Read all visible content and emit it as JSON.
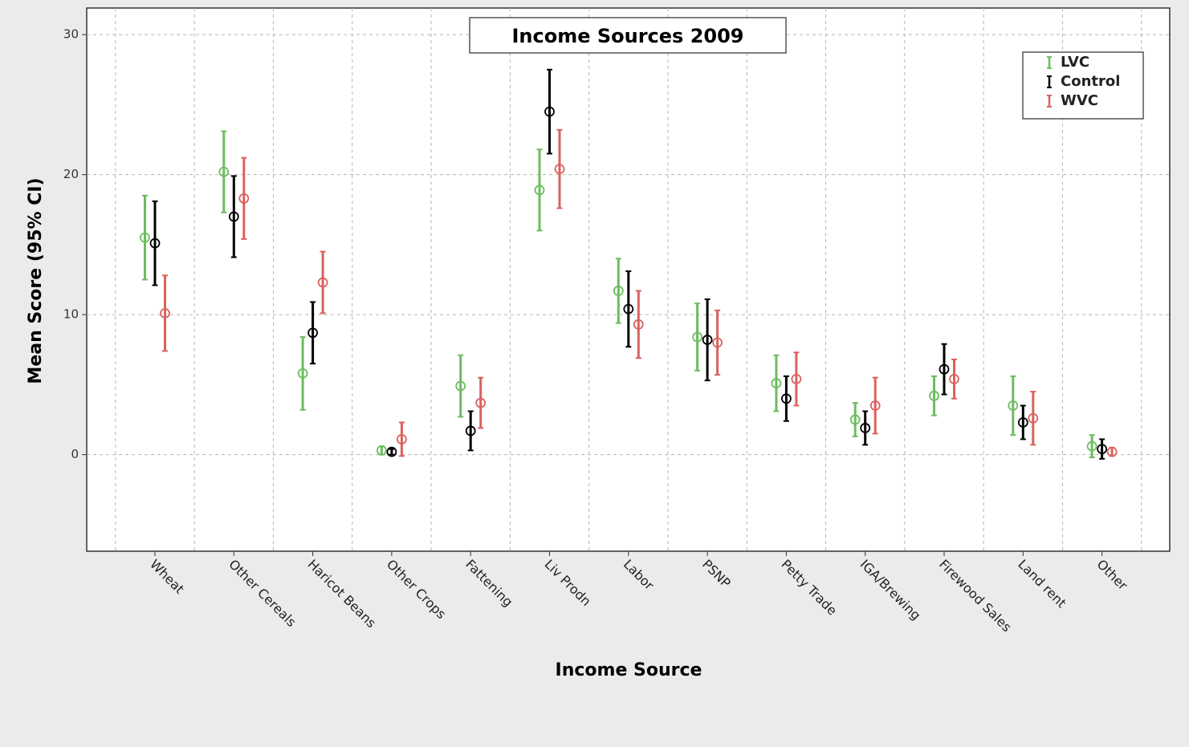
{
  "chart_data": {
    "type": "errorbar",
    "title": "Income Sources 2009",
    "x_label": "Income Source",
    "y_label": "Mean Score (95% CI)",
    "categories": [
      "Wheat",
      "Other Cereals",
      "Haricot Beans",
      "Other Crops",
      "Fattening",
      "Liv Prodn",
      "Labor",
      "PSNP",
      "Petty Trade",
      "IGA/Brewing",
      "Firewood Sales",
      "Land rent",
      "Other"
    ],
    "series": [
      {
        "name": "LVC",
        "color": "#6cbd5f",
        "values": [
          15.5,
          20.2,
          5.8,
          0.3,
          4.9,
          18.9,
          11.7,
          8.4,
          5.1,
          2.5,
          4.2,
          3.5,
          0.6
        ],
        "errors": [
          3.0,
          2.9,
          2.6,
          0.3,
          2.2,
          2.9,
          2.3,
          2.4,
          2.0,
          1.2,
          1.4,
          2.1,
          0.8
        ]
      },
      {
        "name": "Control",
        "color": "#000000",
        "values": [
          15.1,
          17.0,
          8.7,
          0.2,
          1.7,
          24.5,
          10.4,
          8.2,
          4.0,
          1.9,
          6.1,
          2.3,
          0.4
        ],
        "errors": [
          3.0,
          2.9,
          2.2,
          0.2,
          1.4,
          3.0,
          2.7,
          2.9,
          1.6,
          1.2,
          1.8,
          1.2,
          0.7
        ]
      },
      {
        "name": "WVC",
        "color": "#d9625e",
        "values": [
          10.1,
          18.3,
          12.3,
          1.1,
          3.7,
          20.4,
          9.3,
          8.0,
          5.4,
          3.5,
          5.4,
          2.6,
          0.2
        ],
        "errors": [
          2.7,
          2.9,
          2.2,
          1.2,
          1.8,
          2.8,
          2.4,
          2.3,
          1.9,
          2.0,
          1.4,
          1.9,
          0.3
        ]
      }
    ],
    "ylim": [
      -6.9,
      31.9
    ],
    "yticks": [
      0,
      10,
      20,
      30
    ],
    "grid": true,
    "legend": "upper right"
  }
}
